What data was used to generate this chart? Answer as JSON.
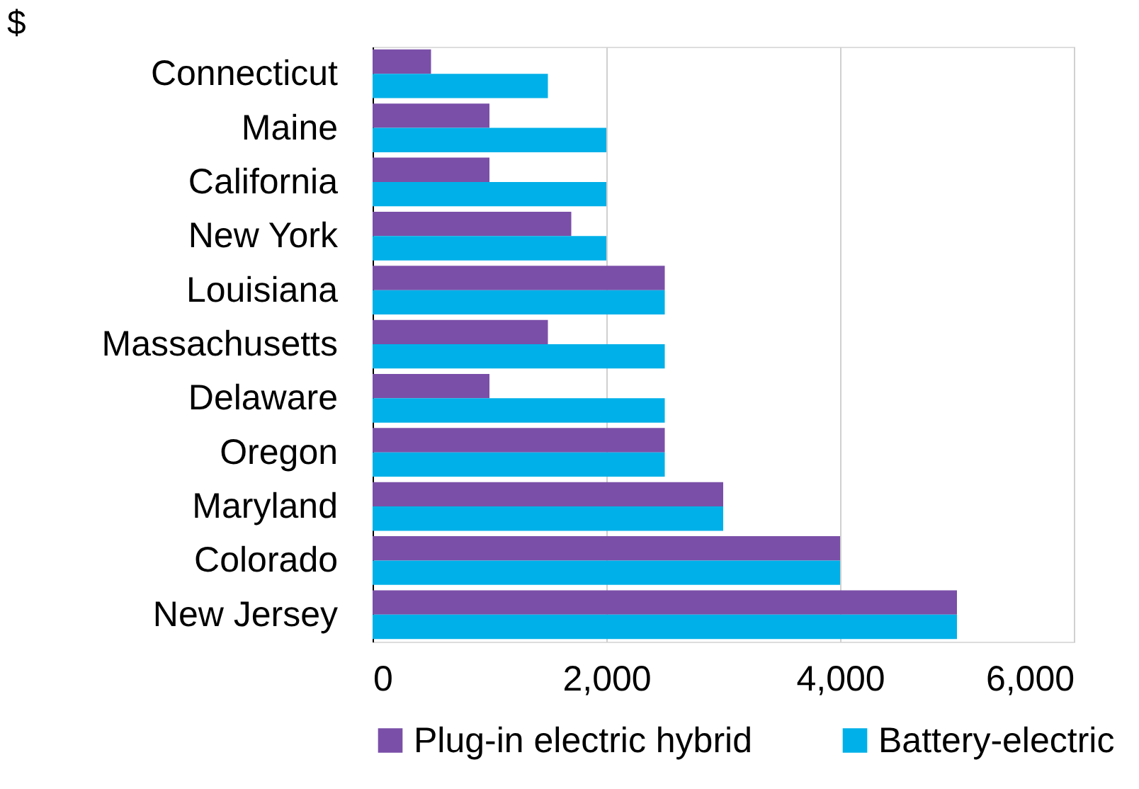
{
  "chart_data": {
    "type": "bar",
    "orientation": "horizontal",
    "title": "$",
    "categories": [
      "Connecticut",
      "Maine",
      "California",
      "New York",
      "Louisiana",
      "Massachusetts",
      "Delaware",
      "Oregon",
      "Maryland",
      "Colorado",
      "New Jersey"
    ],
    "series": [
      {
        "name": "Plug-in electric hybrid",
        "color": "#7a4fa8",
        "values": [
          500,
          1000,
          1000,
          1700,
          2500,
          1500,
          1000,
          2500,
          3000,
          4000,
          5000
        ]
      },
      {
        "name": "Battery-electric",
        "color": "#00b0e8",
        "values": [
          1500,
          2000,
          2000,
          2000,
          2500,
          2500,
          2500,
          2500,
          3000,
          4000,
          5000
        ]
      }
    ],
    "xlim": [
      0,
      6000
    ],
    "xticks": [
      0,
      {
        "value": 2000,
        "label": "2,000"
      },
      {
        "value": 4000,
        "label": "4,000"
      },
      {
        "value": 6000,
        "label": "6,000"
      }
    ],
    "grid": "x",
    "legend": "bottom"
  }
}
